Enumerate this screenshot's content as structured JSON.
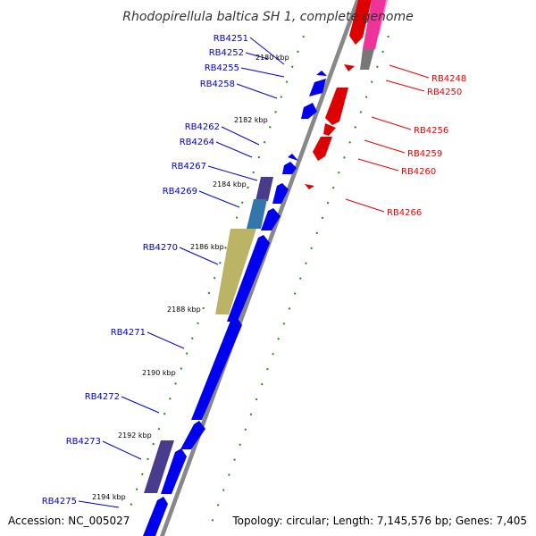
{
  "title": "Rhodopirellula baltica SH 1, complete genome",
  "footer": {
    "accession": "Accession: NC_005027",
    "topology": "Topology: circular; Length: 7,145,576 bp; Genes: 7,405"
  },
  "scale_labels": [
    "2180 kbp",
    "2182 kbp",
    "2184 kbp",
    "2186 kbp",
    "2188 kbp",
    "2190 kbp",
    "2192 kbp",
    "2194 kbp"
  ],
  "colors": {
    "forward": "#0000ee",
    "reverse": "#dd0000",
    "leader_forward": "#0000cc",
    "leader_reverse": "#ee0000",
    "backbone": "#888888",
    "scale": "#228822"
  },
  "genes_forward": [
    "RB4251",
    "RB4252",
    "RB4255",
    "RB4258",
    "RB4262",
    "RB4264",
    "RB4267",
    "RB4269",
    "RB4270",
    "RB4271",
    "RB4272",
    "RB4273",
    "RB4275"
  ],
  "genes_reverse": [
    "RB4248",
    "RB4250",
    "RB4256",
    "RB4259",
    "RB4260",
    "RB4266"
  ]
}
